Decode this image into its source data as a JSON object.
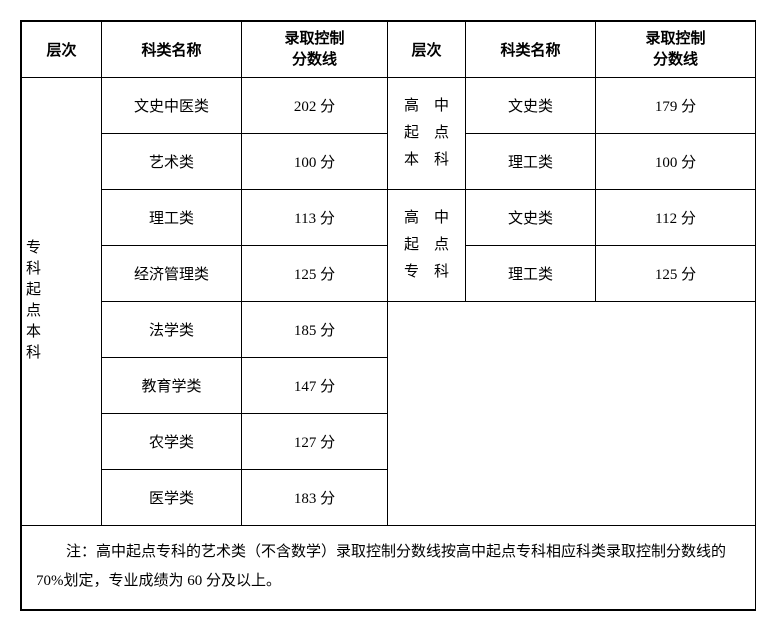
{
  "headers": {
    "level": "层次",
    "category": "科类名称",
    "score": "录取控制\n分数线"
  },
  "left": {
    "level_label": "专科起点本科",
    "rows": [
      {
        "category": "文史中医类",
        "score": "202 分"
      },
      {
        "category": "艺术类",
        "score": "100 分"
      },
      {
        "category": "理工类",
        "score": "113 分"
      },
      {
        "category": "经济管理类",
        "score": "125 分"
      },
      {
        "category": "法学类",
        "score": "185 分"
      },
      {
        "category": "教育学类",
        "score": "147 分"
      },
      {
        "category": "农学类",
        "score": "127 分"
      },
      {
        "category": "医学类",
        "score": "183 分"
      }
    ]
  },
  "right": {
    "groups": [
      {
        "level_label_l1": "高　中",
        "level_label_l2": "起　点",
        "level_label_l3": "本　科",
        "rows": [
          {
            "category": "文史类",
            "score": "179 分"
          },
          {
            "category": "理工类",
            "score": "100 分"
          }
        ]
      },
      {
        "level_label_l1": "高　中",
        "level_label_l2": "起　点",
        "level_label_l3": "专　科",
        "rows": [
          {
            "category": "文史类",
            "score": "112 分"
          },
          {
            "category": "理工类",
            "score": "125 分"
          }
        ]
      }
    ]
  },
  "note": "注：高中起点专科的艺术类（不含数学）录取控制分数线按高中起点专科相应科类录取控制分数线的 70%划定，专业成绩为 60 分及以上。"
}
